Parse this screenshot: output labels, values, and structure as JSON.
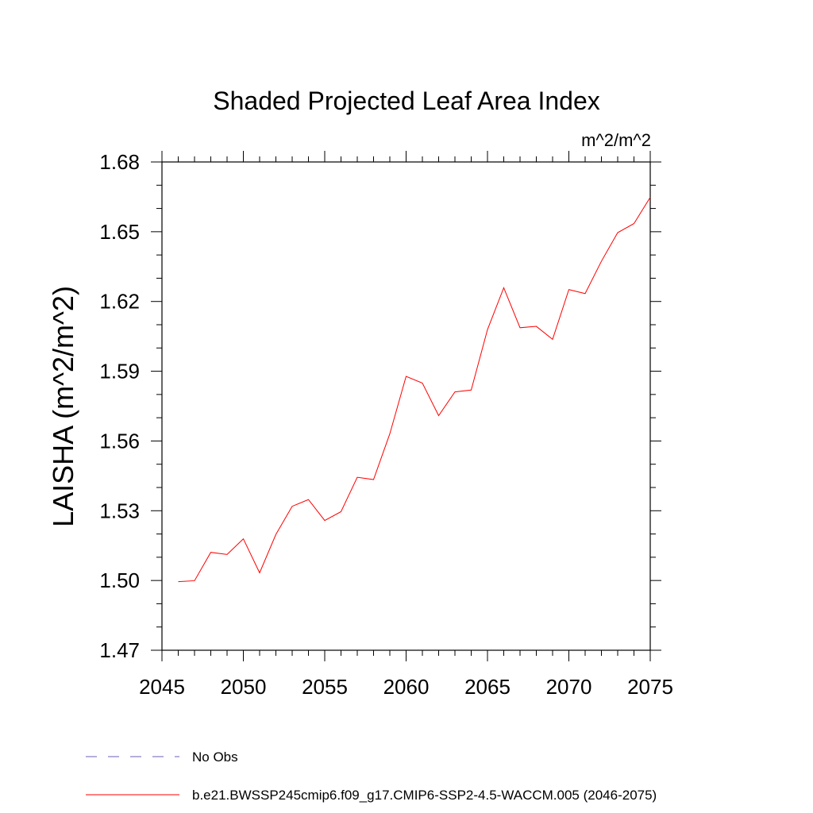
{
  "chart_data": {
    "type": "line",
    "title": "Shaded Projected Leaf Area Index",
    "units_label": "m^2/m^2",
    "ylabel": "LAISHA  (m^2/m^2)",
    "xlabel": "",
    "xlim": [
      2045,
      2075
    ],
    "ylim": [
      1.47,
      1.68
    ],
    "x_ticks": [
      2045,
      2050,
      2055,
      2060,
      2065,
      2070,
      2075
    ],
    "x_tick_labels": [
      "2045",
      "2050",
      "2055",
      "2060",
      "2065",
      "2070",
      "2075"
    ],
    "y_ticks": [
      1.47,
      1.5,
      1.53,
      1.56,
      1.59,
      1.62,
      1.65,
      1.68
    ],
    "y_tick_labels": [
      "1.47",
      "1.50",
      "1.53",
      "1.56",
      "1.59",
      "1.62",
      "1.65",
      "1.68"
    ],
    "grid": false,
    "legend_position": "bottom",
    "series": [
      {
        "name": "No Obs",
        "color": "#6b5fb5",
        "style": "dashed",
        "x": [],
        "y": []
      },
      {
        "name": "b.e21.BWSSP245cmip6.f09_g17.CMIP6-SSP2-4.5-WACCM.005 (2046-2075)",
        "color": "#ff0000",
        "style": "solid",
        "x": [
          2046,
          2047,
          2048,
          2049,
          2050,
          2051,
          2052,
          2053,
          2054,
          2055,
          2056,
          2057,
          2058,
          2059,
          2060,
          2061,
          2062,
          2063,
          2064,
          2065,
          2066,
          2067,
          2068,
          2069,
          2070,
          2071,
          2072,
          2073,
          2074,
          2075
        ],
        "y": [
          1.4995,
          1.4999,
          1.5121,
          1.5112,
          1.5179,
          1.5033,
          1.5198,
          1.5319,
          1.5348,
          1.5258,
          1.5296,
          1.5444,
          1.5434,
          1.5631,
          1.5878,
          1.5849,
          1.5709,
          1.5811,
          1.5819,
          1.6079,
          1.6259,
          1.6087,
          1.6093,
          1.6037,
          1.6251,
          1.6234,
          1.6373,
          1.6496,
          1.6535,
          1.6648
        ]
      }
    ]
  }
}
